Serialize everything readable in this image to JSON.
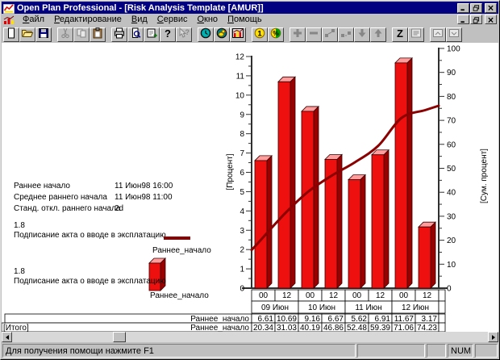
{
  "window": {
    "title": "Open Plan Professional - [Risk Analysis Template [AMUR]]",
    "controls": [
      "minimize",
      "restore",
      "close"
    ]
  },
  "menu": {
    "items": [
      "Файл",
      "Редактирование",
      "Вид",
      "Сервис",
      "Окно",
      "Помощь"
    ]
  },
  "toolbar": {
    "buttons": [
      {
        "name": "new-document",
        "enabled": true
      },
      {
        "name": "open-file",
        "enabled": true
      },
      {
        "name": "save-file",
        "enabled": true
      },
      {
        "name": "cut",
        "enabled": false,
        "group": true
      },
      {
        "name": "copy",
        "enabled": false
      },
      {
        "name": "paste",
        "enabled": true
      },
      {
        "name": "print",
        "enabled": true,
        "group": true
      },
      {
        "name": "print-preview",
        "enabled": true
      },
      {
        "name": "insert-activity",
        "enabled": true
      },
      {
        "name": "help",
        "enabled": true
      },
      {
        "name": "context-help",
        "enabled": false
      },
      {
        "name": "time-analysis",
        "enabled": true,
        "group": true
      },
      {
        "name": "resource-analysis",
        "enabled": true
      },
      {
        "name": "risk-analysis",
        "enabled": true
      },
      {
        "name": "cost-analysis",
        "enabled": true,
        "group": true
      },
      {
        "name": "percent-complete",
        "enabled": true
      },
      {
        "name": "add-activity",
        "enabled": false,
        "group": true
      },
      {
        "name": "delete-activity",
        "enabled": false
      },
      {
        "name": "link-activities",
        "enabled": false
      },
      {
        "name": "unlink-activities",
        "enabled": false
      },
      {
        "name": "move-down",
        "enabled": false
      },
      {
        "name": "move-up",
        "enabled": false
      },
      {
        "name": "sort",
        "enabled": true,
        "group": true
      },
      {
        "name": "notes",
        "enabled": false
      },
      {
        "name": "subproject-open",
        "enabled": false,
        "group": true
      },
      {
        "name": "subproject-close",
        "enabled": false
      }
    ]
  },
  "info": {
    "rows": [
      {
        "label": "Раннее начало",
        "value": "11 Июн98 16:00"
      },
      {
        "label": "Среднее раннего начала",
        "value": "11 Июн98 11:00"
      },
      {
        "label": "Станд. откл.  раннего начала",
        "value": "2d"
      }
    ]
  },
  "legend": {
    "line_entry": {
      "value": "1.8",
      "text": "Подписание акта о вводе в эксплатацию",
      "series": "Раннее_начало"
    },
    "bar_entry": {
      "value": "1.8",
      "text": "Подписание акта о вводе в эксплатацию",
      "series": "Раннее_начало"
    }
  },
  "chart_data": {
    "type": "bar",
    "x_tick_cells": [
      "00",
      "12",
      "00",
      "12",
      "00",
      "12",
      "00",
      "12"
    ],
    "x_date_groups": [
      "09 Июн",
      "10 Июн",
      "11 Июн",
      "12 Июн"
    ],
    "series": [
      {
        "name": "Раннее_начало",
        "type": "bar",
        "axis": "left",
        "values": [
          6.61,
          10.69,
          9.16,
          6.67,
          5.62,
          6.91,
          11.67,
          3.17
        ]
      },
      {
        "name": "Раннее_начало",
        "type": "line",
        "axis": "right",
        "values": [
          20.34,
          31.03,
          40.19,
          46.86,
          52.48,
          59.39,
          71.06,
          74.23
        ]
      }
    ],
    "left_axis": {
      "label": "[Процент]",
      "min": 0,
      "max": 12,
      "major_step": 1,
      "minor_step": 0.5
    },
    "right_axis": {
      "label": "[Сум. процент]",
      "min": 0,
      "max": 100,
      "major_step": 10,
      "minor_step": 5
    },
    "grid": false,
    "colors": {
      "bar_front": "#ee0f0f",
      "bar_side": "#990000",
      "bar_top": "#ff9c9c",
      "line": "#8b0000"
    }
  },
  "table": {
    "rows": [
      {
        "row_label": "",
        "series_label": "Раннее_начало",
        "values": [
          "6.61",
          "10.69",
          "9.16",
          "6.67",
          "5.62",
          "6.91",
          "11.67",
          "3.17"
        ]
      },
      {
        "row_label": "[Итого]",
        "series_label": "Раннее_начало",
        "values": [
          "20.34",
          "31.03",
          "40.19",
          "46.86",
          "52.48",
          "59.39",
          "71.06",
          "74.23"
        ]
      }
    ]
  },
  "status": {
    "message": "Для получения помощи нажмите F1",
    "num_indicator": "NUM"
  }
}
